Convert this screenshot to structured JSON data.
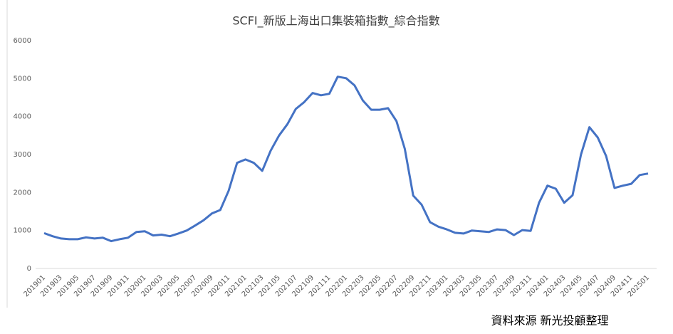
{
  "chart_data": {
    "type": "line",
    "title": "SCFI_新版上海出口集裝箱指數_綜合指數",
    "source": "資料來源 新光投顧整理",
    "categories": [
      "201901",
      null,
      "201903",
      null,
      "201905",
      null,
      "201907",
      null,
      "201909",
      null,
      "201911",
      null,
      "202001",
      null,
      "202003",
      null,
      "202005",
      null,
      "202007",
      null,
      "202009",
      null,
      "202011",
      null,
      "202101",
      null,
      "202103",
      null,
      "202105",
      null,
      "202107",
      null,
      "202109",
      null,
      "202111",
      null,
      "202201",
      null,
      "202203",
      null,
      "202205",
      null,
      "202207",
      null,
      "202209",
      null,
      "202211",
      null,
      "202301",
      null,
      "202303",
      null,
      "202305",
      null,
      "202307",
      null,
      "202309",
      null,
      "202311",
      null,
      "202401",
      null,
      "202403",
      null,
      "202405",
      null,
      "202407",
      null,
      "202409",
      null,
      "202411",
      null,
      "202501"
    ],
    "series": [
      {
        "name": "SCFI",
        "color": "#4472c4",
        "values": [
          930,
          850,
          790,
          770,
          770,
          820,
          790,
          810,
          720,
          770,
          810,
          960,
          980,
          870,
          890,
          850,
          920,
          1000,
          1130,
          1270,
          1450,
          1540,
          2050,
          2780,
          2870,
          2780,
          2570,
          3100,
          3500,
          3800,
          4200,
          4380,
          4620,
          4560,
          4600,
          5050,
          5010,
          4820,
          4420,
          4180,
          4180,
          4220,
          3880,
          3150,
          1920,
          1680,
          1220,
          1100,
          1030,
          940,
          920,
          1000,
          980,
          960,
          1030,
          1010,
          880,
          1010,
          990,
          1730,
          2180,
          2100,
          1730,
          1930,
          3000,
          3720,
          3450,
          2960,
          2120,
          2180,
          2230,
          2460,
          2500
        ]
      }
    ],
    "ylim": [
      0,
      6000
    ],
    "yticks": [
      0,
      1000,
      2000,
      3000,
      4000,
      5000,
      6000
    ],
    "grid": false
  }
}
